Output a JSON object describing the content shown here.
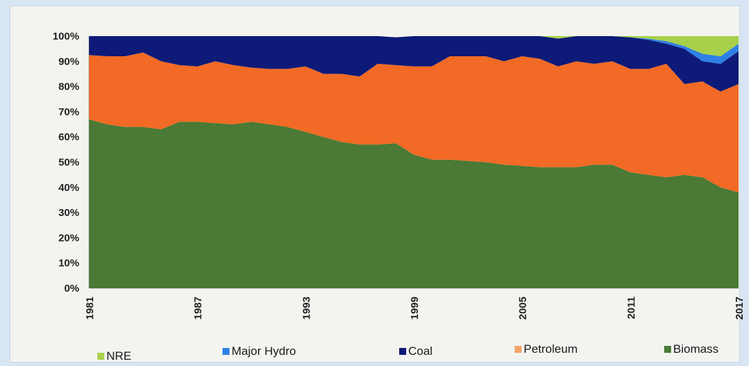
{
  "chart_data": {
    "type": "area",
    "stacked": true,
    "percent": true,
    "title": "",
    "xlabel": "",
    "ylabel": "",
    "ylim": [
      0,
      100
    ],
    "y_ticks": [
      "0%",
      "10%",
      "20%",
      "30%",
      "40%",
      "50%",
      "60%",
      "70%",
      "80%",
      "90%",
      "100%"
    ],
    "x_tick_labels": [
      "1981",
      "1987",
      "1993",
      "1999",
      "2005",
      "2011",
      "2017"
    ],
    "x": [
      1981,
      1982,
      1983,
      1984,
      1985,
      1986,
      1987,
      1988,
      1989,
      1990,
      1991,
      1992,
      1993,
      1994,
      1995,
      1996,
      1997,
      1998,
      1999,
      2000,
      2001,
      2002,
      2003,
      2004,
      2005,
      2006,
      2007,
      2008,
      2009,
      2010,
      2011,
      2012,
      2013,
      2014,
      2015,
      2016,
      2017
    ],
    "legend_position": "bottom",
    "series": [
      {
        "name": "Biomass",
        "color": "#4a7a35",
        "values": [
          67,
          65,
          64,
          64,
          63,
          66,
          66,
          65.5,
          65,
          66,
          65,
          64,
          62,
          60,
          58,
          57,
          57,
          57.5,
          53,
          51,
          51,
          50.5,
          50,
          49,
          48.5,
          48,
          48,
          48,
          49,
          49,
          46,
          45,
          44,
          45,
          44,
          40,
          38
        ]
      },
      {
        "name": "Petroleum",
        "color": "#f26a25",
        "values": [
          25.5,
          27,
          28,
          29.5,
          27,
          22.5,
          22,
          24.5,
          23.5,
          21.5,
          22,
          23,
          26,
          25,
          27,
          27,
          32,
          31,
          35,
          37,
          41,
          41.5,
          42,
          41,
          43.5,
          43,
          40,
          42,
          40,
          41,
          41,
          42,
          45,
          36,
          38,
          38,
          43
        ]
      },
      {
        "name": "Coal",
        "color": "#0d1a78",
        "values": [
          7.5,
          8,
          8,
          6.5,
          10,
          11.5,
          12,
          10,
          11.5,
          12.5,
          13,
          13,
          12,
          15,
          15,
          16,
          11,
          11,
          12,
          12,
          8,
          8,
          8,
          10,
          8,
          9,
          11,
          10,
          11,
          10,
          12.5,
          11.5,
          8,
          14,
          8,
          11,
          13
        ]
      },
      {
        "name": "Major Hydro",
        "color": "#2f80e6",
        "values": [
          0,
          0,
          0,
          0,
          0,
          0,
          0,
          0,
          0,
          0,
          0,
          0,
          0,
          0,
          0,
          0,
          0,
          0,
          0,
          0,
          0,
          0,
          0,
          0,
          0,
          0,
          0,
          0,
          0,
          0,
          0,
          0.5,
          1,
          1,
          3,
          3,
          3
        ]
      },
      {
        "name": "NRE",
        "color": "#a8d04a",
        "values": [
          0,
          0,
          0,
          0,
          0,
          0,
          0,
          0,
          0,
          0,
          0,
          0,
          0,
          0,
          0,
          0,
          0,
          0,
          0,
          0,
          0,
          0,
          0,
          0,
          0,
          0,
          1,
          0,
          0,
          0,
          0.5,
          1,
          2,
          4,
          7,
          8,
          3
        ]
      }
    ],
    "legend": [
      {
        "name": "NRE",
        "color": "#a8d04a"
      },
      {
        "name": "Major Hydro",
        "color": "#2f80e6"
      },
      {
        "name": "Coal",
        "color": "#0d1a78"
      },
      {
        "name": "Petroleum",
        "color": "#f4a46a"
      },
      {
        "name": "Biomass",
        "color": "#4a7a35"
      }
    ]
  }
}
